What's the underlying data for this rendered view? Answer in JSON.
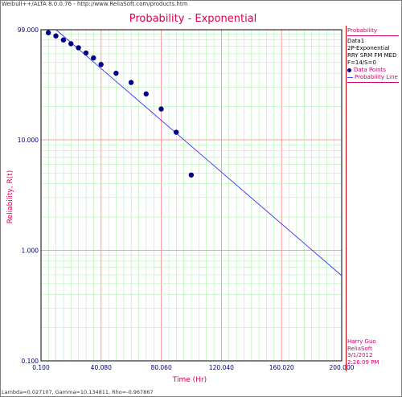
{
  "window": {
    "top_caption": "Weibull++/ALTA 8.0.0.76 - http://www.ReliaSoft.com/products.htm",
    "bottom_caption": "Lambda=0.027107, Gamma=10.134811, Rho=-0.967867"
  },
  "legend": {
    "header": "Probability",
    "lines": [
      "Data1",
      "2P-Exponential",
      "RRY SRM FM MED",
      "F=14/S=0"
    ],
    "data_points_label": "Data Points",
    "probability_line_label": "Probability Line"
  },
  "signature": {
    "name": "Harry Guo",
    "company": "ReliaSoft",
    "date": "3/1/2012",
    "time": "2:26:09 PM"
  },
  "colors": {
    "title": "#e0004a",
    "axis_label": "#e0004a",
    "tick_label": "#000080",
    "major_grid": "#ff9090",
    "minor_grid": "#a0f0a0",
    "line": "#3030ff",
    "points": "#00008b"
  },
  "chart_data": {
    "type": "scatter",
    "title": "Probability - Exponential",
    "xlabel": "Time (Hr)",
    "ylabel": "Reliability, R(t)",
    "xlim": [
      0.1,
      200
    ],
    "ylim": [
      0.1,
      99
    ],
    "yscale": "log",
    "grid": true,
    "x_ticks": [
      "0.100",
      "40.080",
      "80.060",
      "120.040",
      "160.020",
      "200.000"
    ],
    "y_ticks": [
      "99.000",
      "10.000",
      "1.000",
      "0.100"
    ],
    "series": [
      {
        "name": "Data Points",
        "points": [
          [
            5,
            93
          ],
          [
            10,
            87
          ],
          [
            15,
            80
          ],
          [
            20,
            74
          ],
          [
            25,
            68
          ],
          [
            30,
            61
          ],
          [
            35,
            55
          ],
          [
            40,
            48
          ],
          [
            50,
            40
          ],
          [
            60,
            33
          ],
          [
            70,
            26
          ],
          [
            80,
            19
          ],
          [
            90,
            11.7
          ],
          [
            100,
            4.8
          ]
        ]
      },
      {
        "name": "Probability Line",
        "line": [
          [
            10.1,
            99
          ],
          [
            200,
            0.59
          ]
        ]
      }
    ]
  }
}
